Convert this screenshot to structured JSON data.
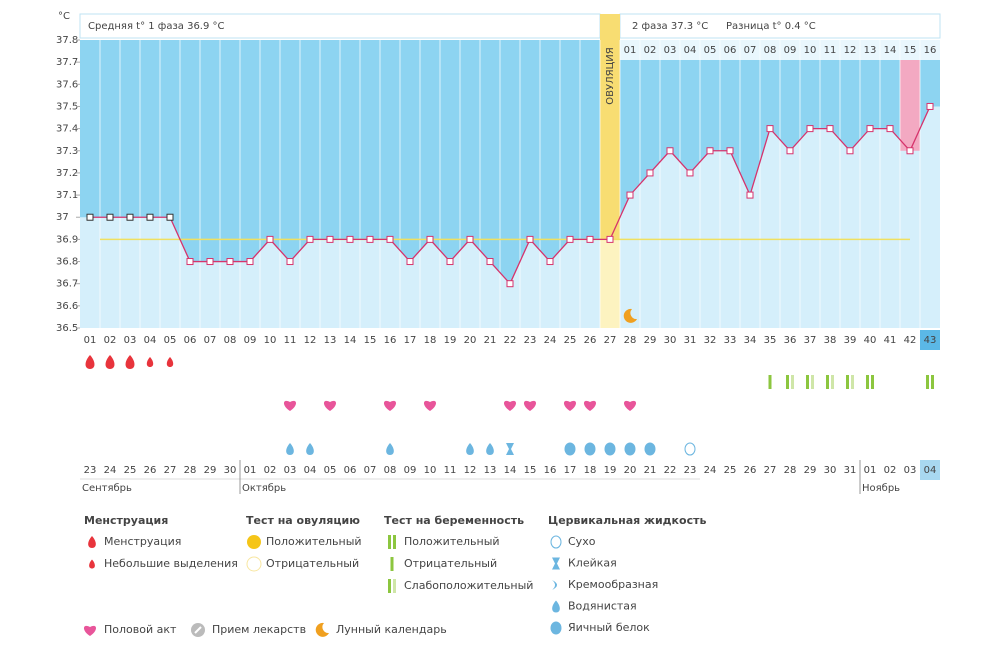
{
  "chart_data": {
    "type": "line",
    "unit": "°C",
    "header": {
      "phase1": "Средняя t° 1 фаза 36.9 °C",
      "phase2": "2 фаза 37.3 °C",
      "diff": "Разница t° 0.4 °C"
    },
    "ovulation_label": "ОВУЛЯЦИЯ",
    "ovulation_day": 27,
    "ylim": [
      36.5,
      37.8
    ],
    "yticks": [
      36.5,
      36.6,
      36.7,
      36.8,
      36.9,
      37,
      37.1,
      37.2,
      37.3,
      37.4,
      37.5,
      37.6,
      37.7,
      37.8
    ],
    "categories": [
      "01",
      "02",
      "03",
      "04",
      "05",
      "06",
      "07",
      "08",
      "09",
      "10",
      "11",
      "12",
      "13",
      "14",
      "15",
      "16",
      "17",
      "18",
      "19",
      "20",
      "21",
      "22",
      "23",
      "24",
      "25",
      "26",
      "27",
      "28",
      "29",
      "30",
      "31",
      "32",
      "33",
      "34",
      "35",
      "36",
      "37",
      "38",
      "39",
      "40",
      "41",
      "42",
      "43"
    ],
    "phase2_days": [
      "01",
      "02",
      "03",
      "04",
      "05",
      "06",
      "07",
      "08",
      "09",
      "10",
      "11",
      "12",
      "13",
      "14",
      "15",
      "16"
    ],
    "series": [
      {
        "color": "#d6336c",
        "values": [
          37,
          37,
          37,
          37,
          37,
          36.8,
          36.8,
          36.8,
          36.8,
          36.9,
          36.8,
          36.9,
          36.9,
          36.9,
          36.9,
          36.9,
          36.8,
          36.9,
          36.8,
          36.9,
          36.8,
          36.7,
          36.9,
          36.8,
          36.9,
          36.9,
          36.9,
          37.1,
          37.2,
          37.3,
          37.2,
          37.3,
          37.3,
          37.1,
          37.4,
          37.3,
          37.4,
          37.4,
          37.3,
          37.4,
          37.4,
          37.3,
          37.5
        ]
      }
    ],
    "coverline": 36.9,
    "dates": [
      "23",
      "24",
      "25",
      "26",
      "27",
      "28",
      "29",
      "30",
      "01",
      "02",
      "03",
      "04",
      "05",
      "06",
      "07",
      "08",
      "09",
      "10",
      "11",
      "12",
      "13",
      "14",
      "15",
      "16",
      "17",
      "18",
      "19",
      "20",
      "21",
      "22",
      "23",
      "24",
      "25",
      "26",
      "27",
      "28",
      "29",
      "30",
      "31",
      "01",
      "02",
      "03",
      "04"
    ],
    "weekend": [
      false,
      false,
      false,
      false,
      false,
      true,
      true,
      false,
      false,
      false,
      false,
      false,
      true,
      true,
      false,
      false,
      false,
      false,
      false,
      true,
      true,
      false,
      false,
      false,
      false,
      false,
      true,
      true,
      false,
      false,
      false,
      false,
      false,
      true,
      true,
      false,
      false,
      false,
      false,
      false,
      true,
      true,
      false
    ],
    "months": [
      {
        "label": "Сентябрь",
        "start": 1
      },
      {
        "label": "Октябрь",
        "start": 9
      },
      {
        "label": "Ноябрь",
        "start": 40
      }
    ],
    "highlight_day": 42,
    "today": 43,
    "menstruation": {
      "x": [
        1,
        2,
        3,
        4,
        5
      ],
      "kind": [
        "heavy",
        "heavy",
        "heavy",
        "light",
        "light"
      ]
    },
    "pregnancy_test": {
      "x": [
        35,
        36,
        37,
        38,
        39,
        40,
        43
      ],
      "kind": [
        "negative",
        "weak",
        "weak",
        "weak",
        "weak",
        "positive",
        "positive"
      ]
    },
    "intercourse": {
      "x": [
        11,
        13,
        16,
        18,
        22,
        23,
        25,
        26,
        28
      ]
    },
    "cervical_fluid": {
      "x": [
        11,
        12,
        16,
        20,
        21,
        22,
        25,
        26,
        27,
        28,
        29,
        31
      ],
      "kind": [
        "watery",
        "watery",
        "watery",
        "watery",
        "watery",
        "sticky",
        "eggwhite",
        "eggwhite",
        "eggwhite",
        "eggwhite",
        "eggwhite",
        "dry"
      ]
    },
    "moon": {
      "x": [
        28
      ]
    },
    "legend": {
      "groups": [
        {
          "title": "Менструация",
          "items": [
            "Менструация",
            "Небольшие выделения"
          ]
        },
        {
          "title": "Тест на овуляцию",
          "items": [
            "Положительный",
            "Отрицательный"
          ]
        },
        {
          "title": "Тест на беременность",
          "items": [
            "Положительный",
            "Отрицательный",
            "Слабоположительный"
          ]
        },
        {
          "title": "Цервикальная жидкость",
          "items": [
            "Сухо",
            "Клейкая",
            "Кремообразная",
            "Водянистая",
            "Яичный белок"
          ]
        }
      ],
      "extra": [
        "Половой акт",
        "Прием лекарств",
        "Лунный календарь"
      ]
    }
  }
}
